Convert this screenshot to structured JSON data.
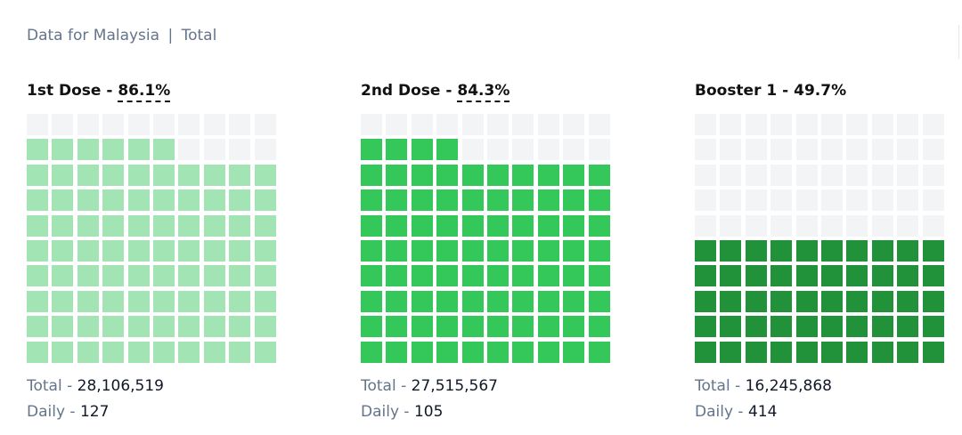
{
  "header": {
    "location_label": "Data for Malaysia",
    "separator": "|",
    "scope_label": "Total"
  },
  "chart_data": {
    "type": "waffle",
    "cells_per_chart": 100,
    "grid": [
      10,
      10
    ],
    "empty_color": "#f3f4f6",
    "panels": [
      {
        "name": "1st Dose",
        "title_sep": " - ",
        "percent": 86.1,
        "percent_label": "86.1%",
        "filled_cells": 86,
        "color": "#a3e4b4",
        "total_label": "Total - ",
        "total": "28,106,519",
        "daily_label": "Daily - ",
        "daily": "127"
      },
      {
        "name": "2nd Dose",
        "title_sep": " - ",
        "percent": 84.3,
        "percent_label": "84.3%",
        "filled_cells": 84,
        "color": "#34c759",
        "total_label": "Total - ",
        "total": "27,515,567",
        "daily_label": "Daily - ",
        "daily": "105"
      },
      {
        "name": "Booster 1",
        "title_sep": " - ",
        "percent": 49.7,
        "percent_label": "49.7%",
        "filled_cells": 50,
        "color": "#21913a",
        "total_label": "Total - ",
        "total": "16,245,868",
        "daily_label": "Daily - ",
        "daily": "414"
      }
    ]
  }
}
